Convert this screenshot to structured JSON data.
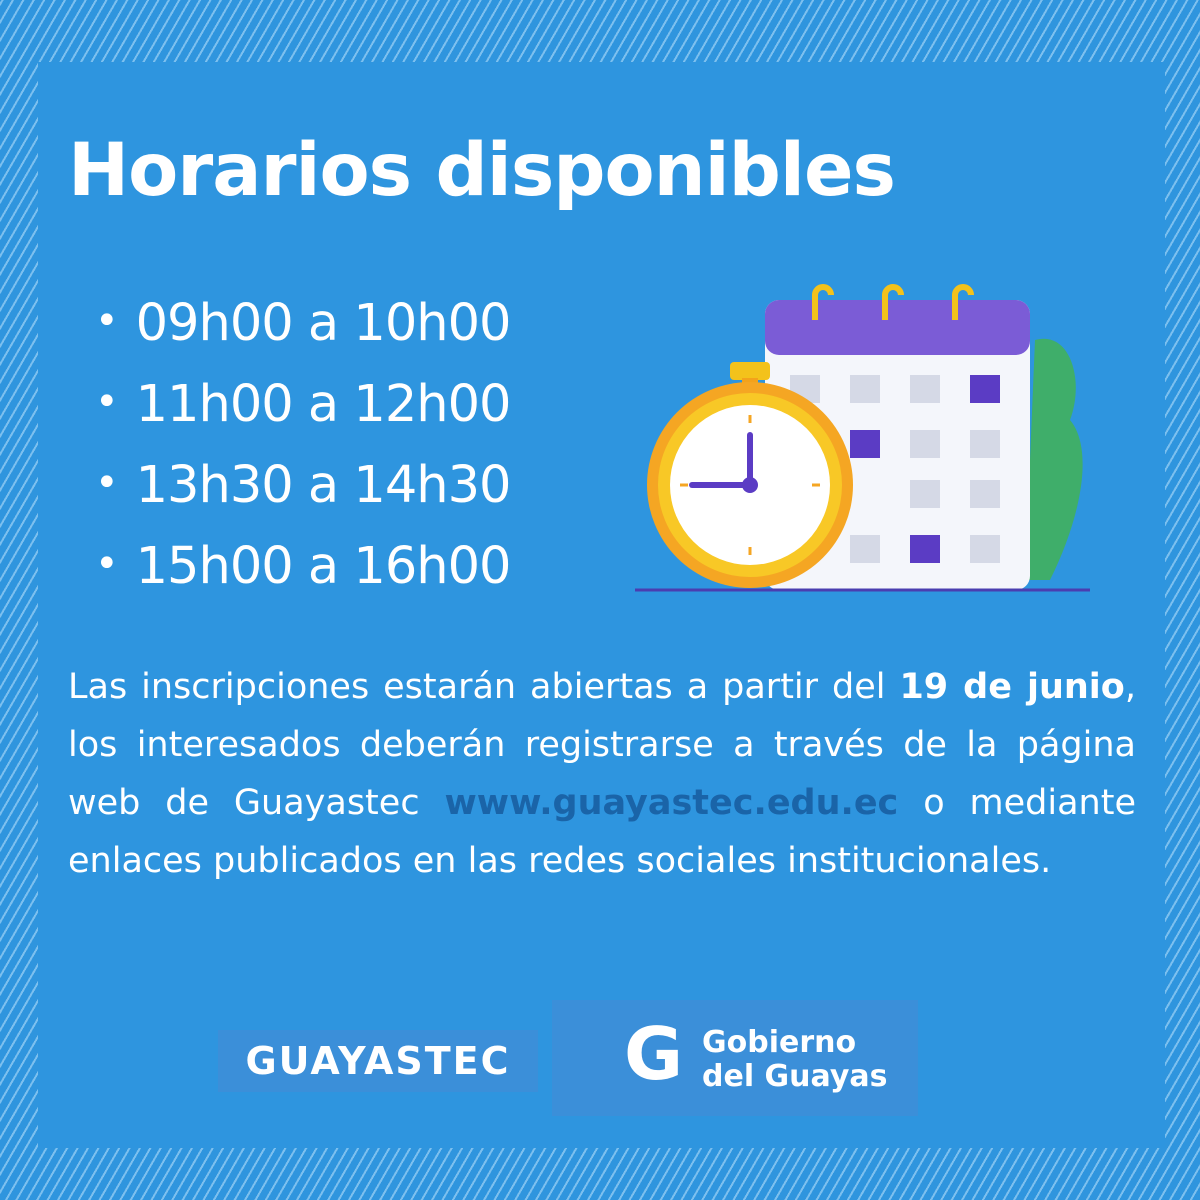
{
  "title": "Horarios disponibles",
  "schedule": [
    "09h00 a 10h00",
    "11h00 a 12h00",
    "13h30 a 14h30",
    "15h00 a 16h00"
  ],
  "paragraph": {
    "part1": "Las inscripciones estarán abiertas a partir del",
    "date": "19 de junio",
    "part2": ", los interesados deberán registrarse a través de la página web de Guayastec",
    "link": "www.guayastec.edu.ec",
    "part3": "o mediante enlaces publicados en las redes sociales institucionales."
  },
  "logos": {
    "guayastec": "GUAYASTEC",
    "gobierno_line1": "Gobierno",
    "gobierno_line2": "del Guayas",
    "gobierno_mark": "G"
  }
}
